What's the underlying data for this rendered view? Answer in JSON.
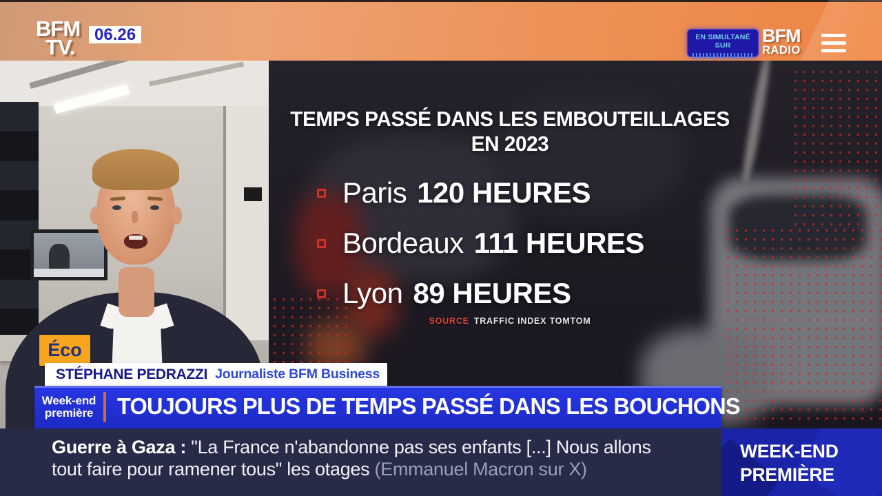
{
  "topbar": {
    "channel_logo": {
      "line1": "BFM",
      "line2": "TV."
    },
    "time": "06.26",
    "simulcast_label": "EN SIMULTANÉ SUR",
    "radio_logo": {
      "line1": "BFM",
      "line2": "RADIO"
    }
  },
  "infographic": {
    "title": "TEMPS PASSÉ DANS LES EMBOUTEILLAGES EN 2023",
    "items": [
      {
        "city": "Paris",
        "value": "120 HEURES"
      },
      {
        "city": "Bordeaux",
        "value": "111 HEURES"
      },
      {
        "city": "Lyon",
        "value": "89 HEURES"
      }
    ],
    "source_label": "SOURCE",
    "source_text": "TRAFFIC INDEX TOMTOM"
  },
  "speaker": {
    "badge": "Éco",
    "name": "STÉPHANE PEDRAZZI",
    "role": "Journaliste BFM Business"
  },
  "headline_banner": {
    "program_line1": "Week-end",
    "program_line2": "première",
    "headline": "TOUJOURS PLUS DE TEMPS PASSÉ DANS LES BOUCHONS"
  },
  "ticker": {
    "label": "Guerre à Gaza :",
    "line1_rest": " \"La France n'abandonne pas ses enfants [...] Nous allons",
    "line2_main": "tout faire pour ramener tous\" les otages ",
    "attribution": "(Emmanuel Macron sur X)"
  },
  "program_box": {
    "line1": "WEEK-END",
    "line2": "PREMIÈRE"
  },
  "colors": {
    "topbar_orange": "#ec9258",
    "banner_blue": "#2231d8",
    "ticker_navy": "#282b48",
    "accent_red": "#cb3325",
    "badge_gold": "#f7a51f",
    "time_blue": "#2824c2",
    "divider_orange": "#d96a2c"
  }
}
